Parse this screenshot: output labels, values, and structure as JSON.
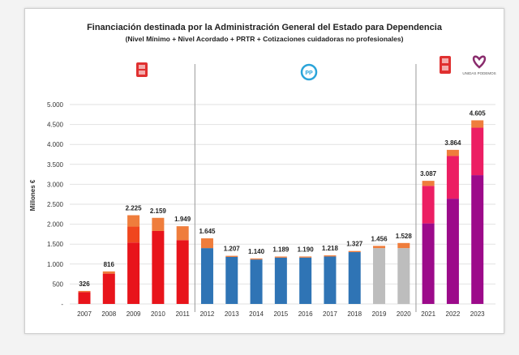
{
  "chart_data": {
    "type": "bar",
    "stacked": true,
    "title": "Financiación destinada por la Administración General del Estado para Dependencia",
    "subtitle": "(Nivel Mínimo + Nivel Acordado + PRTR + Cotizaciones cuidadoras no profesionales)",
    "ylabel": "Millones €",
    "xlabel": "",
    "ylim": [
      0,
      5000
    ],
    "yticks": [
      "-",
      "500",
      "1.000",
      "1.500",
      "2.000",
      "2.500",
      "3.000",
      "3.500",
      "4.000",
      "4.500",
      "5.000"
    ],
    "grid": true,
    "categories": [
      "2007",
      "2008",
      "2009",
      "2010",
      "2011",
      "2012",
      "2013",
      "2014",
      "2015",
      "2016",
      "2017",
      "2018",
      "2019",
      "2020",
      "2021",
      "2022",
      "2023"
    ],
    "totals": [
      326,
      816,
      2225,
      2159,
      1949,
      1645,
      1207,
      1140,
      1189,
      1190,
      1218,
      1327,
      1456,
      1528,
      3087,
      3864,
      4605
    ],
    "total_labels": [
      "326",
      "816",
      "2.225",
      "2.159",
      "1.949",
      "1.645",
      "1.207",
      "1.140",
      "1.189",
      "1.190",
      "1.218",
      "1.327",
      "1.456",
      "1.528",
      "3.087",
      "3.864",
      "4.605"
    ],
    "segments": [
      [
        [
          300,
          "#e8141b"
        ],
        [
          26,
          "#ef7d3c"
        ]
      ],
      [
        [
          760,
          "#e8141b"
        ],
        [
          56,
          "#ef7d3c"
        ]
      ],
      [
        [
          1540,
          "#e8141b"
        ],
        [
          400,
          "#f0461e"
        ],
        [
          285,
          "#ef7d3c"
        ]
      ],
      [
        [
          1830,
          "#e8141b"
        ],
        [
          329,
          "#ef7d3c"
        ]
      ],
      [
        [
          1600,
          "#e8141b"
        ],
        [
          349,
          "#ef7d3c"
        ]
      ],
      [
        [
          1400,
          "#2f74b5"
        ],
        [
          245,
          "#ef7d3c"
        ]
      ],
      [
        [
          1180,
          "#2f74b5"
        ],
        [
          27,
          "#ef7d3c"
        ]
      ],
      [
        [
          1115,
          "#2f74b5"
        ],
        [
          25,
          "#ef7d3c"
        ]
      ],
      [
        [
          1162,
          "#2f74b5"
        ],
        [
          27,
          "#ef7d3c"
        ]
      ],
      [
        [
          1163,
          "#2f74b5"
        ],
        [
          27,
          "#ef7d3c"
        ]
      ],
      [
        [
          1190,
          "#2f74b5"
        ],
        [
          28,
          "#ef7d3c"
        ]
      ],
      [
        [
          1300,
          "#2f74b5"
        ],
        [
          27,
          "#ef7d3c"
        ]
      ],
      [
        [
          1400,
          "#bdbdbd"
        ],
        [
          56,
          "#ef7d3c"
        ]
      ],
      [
        [
          1400,
          "#bdbdbd"
        ],
        [
          128,
          "#ef7d3c"
        ]
      ],
      [
        [
          2020,
          "#9c0a8a"
        ],
        [
          940,
          "#ec1e63"
        ],
        [
          127,
          "#ef7d3c"
        ]
      ],
      [
        [
          2640,
          "#9c0a8a"
        ],
        [
          1070,
          "#ec1e63"
        ],
        [
          154,
          "#ef7d3c"
        ]
      ],
      [
        [
          3230,
          "#9c0a8a"
        ],
        [
          1190,
          "#ec1e63"
        ],
        [
          185,
          "#ef7d3c"
        ]
      ]
    ],
    "period_dividers_after": [
      "2011",
      "2020"
    ],
    "period_logos": [
      "psoe-logo",
      "pp-logo",
      "psoe-logo",
      "unidas-podemos-logo"
    ]
  },
  "logos": {
    "pp_text": "PP",
    "podemos_text": "UNIDAS PODEMOS"
  }
}
